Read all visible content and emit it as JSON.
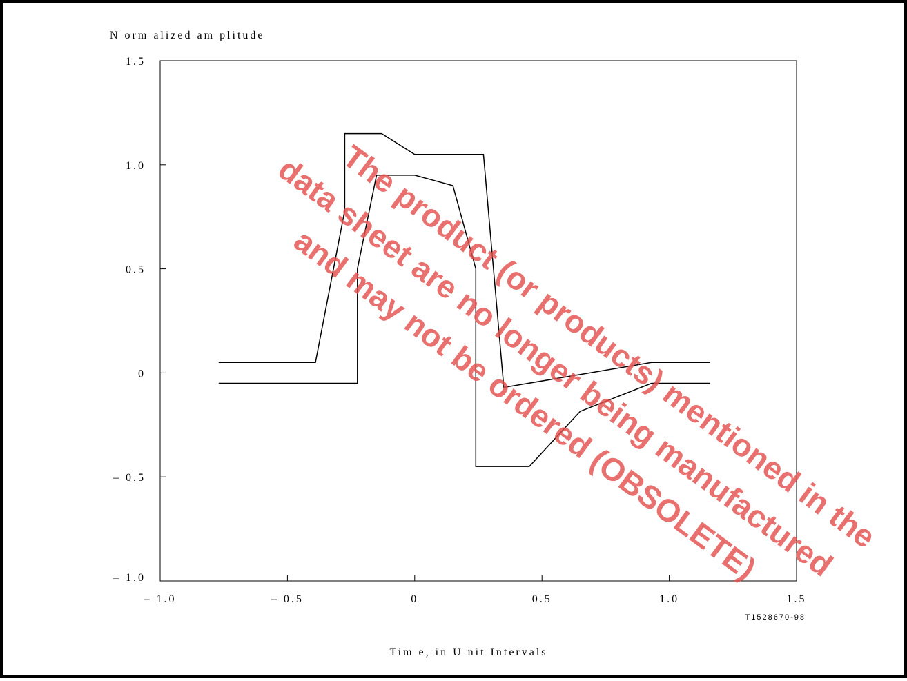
{
  "chart_data": {
    "type": "line",
    "ylabel": "N orm alized am plitude",
    "xlabel": "Tim e, in U nit Intervals",
    "xlim": [
      -1.0,
      1.5
    ],
    "ylim": [
      -1.0,
      1.5
    ],
    "x_ticks": [
      {
        "value": -1.0,
        "label": "– 1.0"
      },
      {
        "value": -0.5,
        "label": "– 0.5"
      },
      {
        "value": 0,
        "label": "0"
      },
      {
        "value": 0.5,
        "label": "0.5"
      },
      {
        "value": 1.0,
        "label": "1.0"
      },
      {
        "value": 1.5,
        "label": "1.5"
      }
    ],
    "y_ticks": [
      {
        "value": 1.5,
        "label": "1.5"
      },
      {
        "value": 1.0,
        "label": "1.0"
      },
      {
        "value": 0.5,
        "label": "0.5"
      },
      {
        "value": 0,
        "label": "0"
      },
      {
        "value": -0.5,
        "label": "– 0.5"
      },
      {
        "value": -1.0,
        "label": "– 1.0"
      }
    ],
    "grid": false,
    "series": [
      {
        "role": "upper-mask",
        "points": [
          [
            -0.77,
            0.05
          ],
          [
            -0.39,
            0.05
          ],
          [
            -0.275,
            0.78
          ],
          [
            -0.275,
            1.15
          ],
          [
            -0.13,
            1.15
          ],
          [
            0.0,
            1.05
          ],
          [
            0.27,
            1.05
          ],
          [
            0.35,
            -0.07
          ],
          [
            0.93,
            0.05
          ],
          [
            1.16,
            0.05
          ]
        ]
      },
      {
        "role": "lower-mask",
        "points": [
          [
            -0.77,
            -0.05
          ],
          [
            -0.225,
            -0.05
          ],
          [
            -0.225,
            0.5
          ],
          [
            -0.15,
            0.95
          ],
          [
            0.0,
            0.95
          ],
          [
            0.15,
            0.9
          ],
          [
            0.24,
            0.5
          ],
          [
            0.24,
            -0.45
          ],
          [
            0.45,
            -0.45
          ],
          [
            0.65,
            -0.185
          ],
          [
            0.93,
            -0.05
          ],
          [
            1.16,
            -0.05
          ]
        ]
      }
    ],
    "figure_id": "T1528670-98"
  },
  "watermark": {
    "lines": [
      "The product (or products) mentioned in the",
      "data sheet are no longer being manufactured",
      "and may not be ordered (OBSOLETE)"
    ],
    "color": "#e3514f"
  }
}
